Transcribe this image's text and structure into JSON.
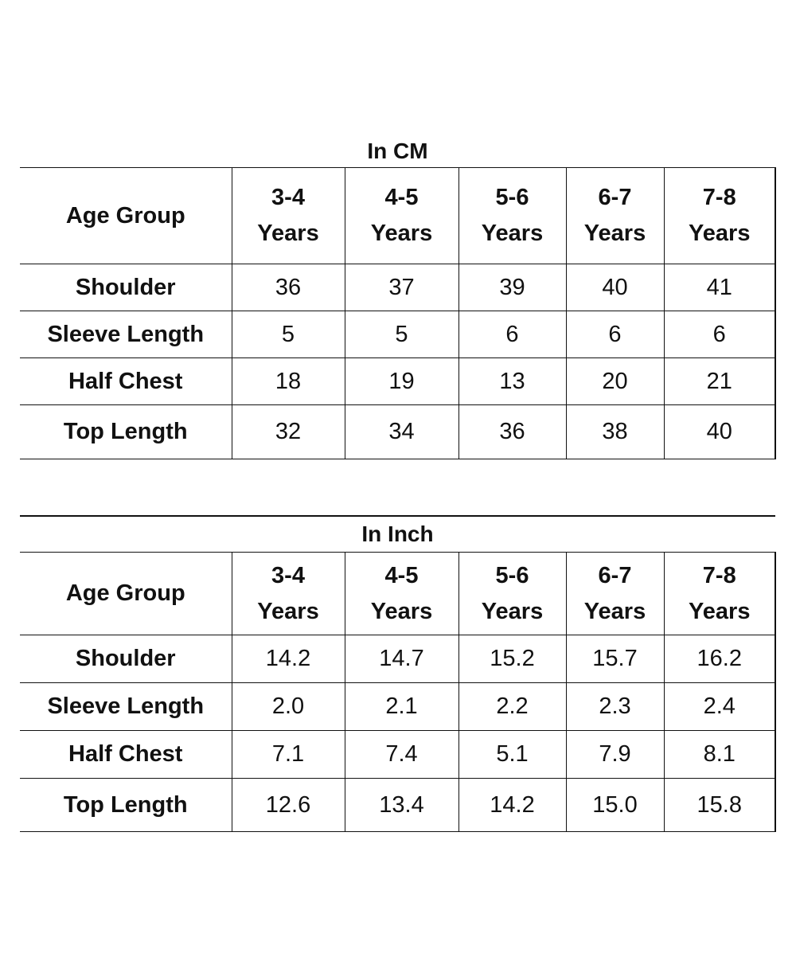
{
  "cm_chart": {
    "title": "In CM",
    "header": {
      "label": "Age Group",
      "columns": [
        {
          "top": "3-4",
          "bottom": "Years"
        },
        {
          "top": "4-5",
          "bottom": "Years"
        },
        {
          "top": "5-6",
          "bottom": "Years"
        },
        {
          "top": "6-7",
          "bottom": "Years"
        },
        {
          "top": "7-8",
          "bottom": "Years"
        }
      ]
    },
    "rows": [
      {
        "label": "Shoulder",
        "values": [
          "36",
          "37",
          "39",
          "40",
          "41"
        ]
      },
      {
        "label": "Sleeve Length",
        "values": [
          "5",
          "5",
          "6",
          "6",
          "6"
        ]
      },
      {
        "label": "Half Chest",
        "values": [
          "18",
          "19",
          "13",
          "20",
          "21"
        ]
      },
      {
        "label": "Top Length",
        "values": [
          "32",
          "34",
          "36",
          "38",
          "40"
        ]
      }
    ]
  },
  "inch_chart": {
    "title": "In Inch",
    "header": {
      "label": "Age Group",
      "columns": [
        {
          "top": "3-4",
          "bottom": "Years"
        },
        {
          "top": "4-5",
          "bottom": "Years"
        },
        {
          "top": "5-6",
          "bottom": "Years"
        },
        {
          "top": "6-7",
          "bottom": "Years"
        },
        {
          "top": "7-8",
          "bottom": "Years"
        }
      ]
    },
    "rows": [
      {
        "label": "Shoulder",
        "values": [
          "14.2",
          "14.7",
          "15.2",
          "15.7",
          "16.2"
        ]
      },
      {
        "label": "Sleeve Length",
        "values": [
          "2.0",
          "2.1",
          "2.2",
          "2.3",
          "2.4"
        ]
      },
      {
        "label": "Half Chest",
        "values": [
          "7.1",
          "7.4",
          "5.1",
          "7.9",
          "8.1"
        ]
      },
      {
        "label": "Top Length",
        "values": [
          "12.6",
          "13.4",
          "14.2",
          "15.0",
          "15.8"
        ]
      }
    ]
  }
}
